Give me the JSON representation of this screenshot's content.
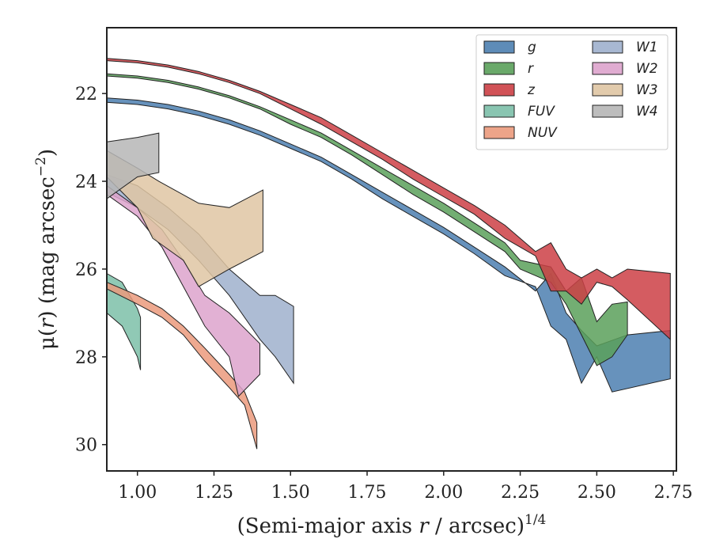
{
  "chart_data": {
    "type": "area",
    "xlabel": "(Semi-major axis r / arcsec)",
    "xlabel_main": "(Semi-major axis ",
    "xlabel_var": "r",
    "xlabel_tail": " / arcsec)",
    "xlabel_exp": "1/4",
    "ylabel_main": "μ(",
    "ylabel_var": "r",
    "ylabel_tail": ") (mag arcsec",
    "ylabel_exp": "−2",
    "ylabel_close": ")",
    "xlim": [
      0.9,
      2.76
    ],
    "ylim": [
      30.6,
      20.5
    ],
    "y_inverted": true,
    "x_ticks": [
      1.0,
      1.25,
      1.5,
      1.75,
      2.0,
      2.25,
      2.5,
      2.75
    ],
    "x_tick_labels": [
      "1.00",
      "1.25",
      "1.50",
      "1.75",
      "2.00",
      "2.25",
      "2.50",
      "2.75"
    ],
    "y_ticks": [
      22,
      24,
      26,
      28,
      30
    ],
    "y_tick_labels": [
      "22",
      "24",
      "26",
      "28",
      "30"
    ],
    "grid": false,
    "legend": {
      "placement": "top-right",
      "columns": 2
    },
    "series": [
      {
        "name": "g",
        "color": "#4c7fb0",
        "upper": [
          [
            0.9,
            22.1
          ],
          [
            1.0,
            22.15
          ],
          [
            1.1,
            22.25
          ],
          [
            1.2,
            22.4
          ],
          [
            1.3,
            22.6
          ],
          [
            1.4,
            22.85
          ],
          [
            1.5,
            23.15
          ],
          [
            1.6,
            23.45
          ],
          [
            1.7,
            23.85
          ],
          [
            1.8,
            24.25
          ],
          [
            1.9,
            24.65
          ],
          [
            2.0,
            25.05
          ],
          [
            2.1,
            25.5
          ],
          [
            2.2,
            25.95
          ],
          [
            2.3,
            26.5
          ],
          [
            2.35,
            26.1
          ],
          [
            2.4,
            27.0
          ],
          [
            2.45,
            27.4
          ],
          [
            2.5,
            27.75
          ],
          [
            2.6,
            27.5
          ],
          [
            2.74,
            27.4
          ]
        ],
        "lower": [
          [
            0.9,
            22.2
          ],
          [
            1.0,
            22.25
          ],
          [
            1.1,
            22.35
          ],
          [
            1.2,
            22.5
          ],
          [
            1.3,
            22.7
          ],
          [
            1.4,
            22.95
          ],
          [
            1.5,
            23.25
          ],
          [
            1.6,
            23.55
          ],
          [
            1.7,
            23.95
          ],
          [
            1.8,
            24.4
          ],
          [
            1.9,
            24.8
          ],
          [
            2.0,
            25.2
          ],
          [
            2.1,
            25.65
          ],
          [
            2.2,
            26.15
          ],
          [
            2.3,
            26.4
          ],
          [
            2.35,
            27.3
          ],
          [
            2.4,
            27.6
          ],
          [
            2.45,
            28.6
          ],
          [
            2.5,
            28.0
          ],
          [
            2.55,
            28.8
          ],
          [
            2.74,
            28.5
          ]
        ]
      },
      {
        "name": "r",
        "color": "#5aa05a",
        "upper": [
          [
            0.9,
            21.55
          ],
          [
            1.0,
            21.6
          ],
          [
            1.1,
            21.7
          ],
          [
            1.2,
            21.85
          ],
          [
            1.3,
            22.05
          ],
          [
            1.4,
            22.3
          ],
          [
            1.5,
            22.6
          ],
          [
            1.6,
            22.9
          ],
          [
            1.7,
            23.3
          ],
          [
            1.8,
            23.7
          ],
          [
            1.9,
            24.1
          ],
          [
            2.0,
            24.5
          ],
          [
            2.1,
            24.95
          ],
          [
            2.2,
            25.4
          ],
          [
            2.25,
            25.8
          ],
          [
            2.35,
            25.95
          ],
          [
            2.4,
            26.5
          ],
          [
            2.45,
            26.2
          ],
          [
            2.5,
            27.2
          ],
          [
            2.55,
            26.8
          ],
          [
            2.6,
            26.75
          ]
        ],
        "lower": [
          [
            0.9,
            21.6
          ],
          [
            1.0,
            21.65
          ],
          [
            1.1,
            21.75
          ],
          [
            1.2,
            21.9
          ],
          [
            1.3,
            22.1
          ],
          [
            1.4,
            22.35
          ],
          [
            1.5,
            22.7
          ],
          [
            1.6,
            23.0
          ],
          [
            1.7,
            23.4
          ],
          [
            1.8,
            23.85
          ],
          [
            1.9,
            24.3
          ],
          [
            2.0,
            24.7
          ],
          [
            2.1,
            25.15
          ],
          [
            2.2,
            25.6
          ],
          [
            2.25,
            26.0
          ],
          [
            2.35,
            26.3
          ],
          [
            2.4,
            26.8
          ],
          [
            2.45,
            27.5
          ],
          [
            2.5,
            28.2
          ],
          [
            2.55,
            28.0
          ],
          [
            2.6,
            27.5
          ]
        ]
      },
      {
        "name": "z",
        "color": "#cc3f45",
        "upper": [
          [
            0.9,
            21.2
          ],
          [
            1.0,
            21.25
          ],
          [
            1.1,
            21.35
          ],
          [
            1.2,
            21.5
          ],
          [
            1.3,
            21.7
          ],
          [
            1.4,
            21.95
          ],
          [
            1.5,
            22.25
          ],
          [
            1.6,
            22.55
          ],
          [
            1.7,
            22.95
          ],
          [
            1.8,
            23.35
          ],
          [
            1.9,
            23.75
          ],
          [
            2.0,
            24.15
          ],
          [
            2.1,
            24.55
          ],
          [
            2.2,
            25.0
          ],
          [
            2.3,
            25.6
          ],
          [
            2.35,
            25.4
          ],
          [
            2.4,
            26.0
          ],
          [
            2.45,
            26.2
          ],
          [
            2.5,
            26.0
          ],
          [
            2.55,
            26.2
          ],
          [
            2.6,
            26.0
          ],
          [
            2.74,
            26.1
          ]
        ],
        "lower": [
          [
            0.9,
            21.25
          ],
          [
            1.0,
            21.3
          ],
          [
            1.1,
            21.4
          ],
          [
            1.2,
            21.55
          ],
          [
            1.3,
            21.75
          ],
          [
            1.4,
            22.0
          ],
          [
            1.5,
            22.35
          ],
          [
            1.6,
            22.7
          ],
          [
            1.7,
            23.1
          ],
          [
            1.8,
            23.5
          ],
          [
            1.9,
            23.95
          ],
          [
            2.0,
            24.35
          ],
          [
            2.1,
            24.75
          ],
          [
            2.2,
            25.3
          ],
          [
            2.3,
            25.7
          ],
          [
            2.35,
            26.5
          ],
          [
            2.4,
            26.5
          ],
          [
            2.45,
            26.8
          ],
          [
            2.5,
            26.3
          ],
          [
            2.55,
            26.4
          ],
          [
            2.6,
            26.7
          ],
          [
            2.74,
            27.6
          ]
        ]
      },
      {
        "name": "FUV",
        "color": "#7cbfa8",
        "upper": [
          [
            0.9,
            26.1
          ],
          [
            0.95,
            26.3
          ],
          [
            1.0,
            26.9
          ],
          [
            1.01,
            27.1
          ]
        ],
        "lower": [
          [
            0.9,
            27.0
          ],
          [
            0.95,
            27.3
          ],
          [
            1.0,
            28.0
          ],
          [
            1.01,
            28.3
          ]
        ]
      },
      {
        "name": "NUV",
        "color": "#eb9a7c",
        "upper": [
          [
            0.9,
            26.3
          ],
          [
            1.0,
            26.6
          ],
          [
            1.08,
            26.9
          ],
          [
            1.15,
            27.3
          ],
          [
            1.22,
            27.8
          ],
          [
            1.3,
            28.4
          ],
          [
            1.35,
            28.8
          ],
          [
            1.39,
            29.5
          ]
        ],
        "lower": [
          [
            0.9,
            26.45
          ],
          [
            1.0,
            26.8
          ],
          [
            1.08,
            27.1
          ],
          [
            1.15,
            27.5
          ],
          [
            1.22,
            28.1
          ],
          [
            1.3,
            28.7
          ],
          [
            1.35,
            29.1
          ],
          [
            1.39,
            30.1
          ]
        ]
      },
      {
        "name": "W1",
        "color": "#9fb0cd",
        "upper": [
          [
            0.9,
            23.85
          ],
          [
            1.0,
            24.1
          ],
          [
            1.1,
            24.6
          ],
          [
            1.2,
            25.2
          ],
          [
            1.3,
            26.0
          ],
          [
            1.4,
            26.6
          ],
          [
            1.45,
            26.6
          ],
          [
            1.51,
            26.85
          ]
        ],
        "lower": [
          [
            0.9,
            24.25
          ],
          [
            1.0,
            24.6
          ],
          [
            1.1,
            25.1
          ],
          [
            1.2,
            25.8
          ],
          [
            1.3,
            26.6
          ],
          [
            1.4,
            27.6
          ],
          [
            1.45,
            28.0
          ],
          [
            1.51,
            28.6
          ]
        ]
      },
      {
        "name": "W2",
        "color": "#dda3cc",
        "upper": [
          [
            0.9,
            24.1
          ],
          [
            1.0,
            24.6
          ],
          [
            1.08,
            25.1
          ],
          [
            1.15,
            25.8
          ],
          [
            1.22,
            26.6
          ],
          [
            1.3,
            27.0
          ],
          [
            1.4,
            27.7
          ]
        ],
        "lower": [
          [
            0.9,
            24.3
          ],
          [
            1.0,
            24.8
          ],
          [
            1.08,
            25.5
          ],
          [
            1.15,
            26.4
          ],
          [
            1.22,
            27.3
          ],
          [
            1.3,
            28.0
          ],
          [
            1.33,
            28.9
          ],
          [
            1.4,
            28.4
          ]
        ]
      },
      {
        "name": "W3",
        "color": "#dfc5a3",
        "upper": [
          [
            0.9,
            23.3
          ],
          [
            1.0,
            23.7
          ],
          [
            1.07,
            24.0
          ],
          [
            1.2,
            24.5
          ],
          [
            1.3,
            24.6
          ],
          [
            1.41,
            24.2
          ]
        ],
        "lower": [
          [
            0.9,
            23.9
          ],
          [
            1.0,
            24.6
          ],
          [
            1.05,
            25.3
          ],
          [
            1.15,
            25.8
          ],
          [
            1.2,
            26.4
          ],
          [
            1.3,
            26.0
          ],
          [
            1.41,
            25.6
          ]
        ]
      },
      {
        "name": "W4",
        "color": "#b6b6b6",
        "upper": [
          [
            0.9,
            23.1
          ],
          [
            1.0,
            23.0
          ],
          [
            1.07,
            22.9
          ]
        ],
        "lower": [
          [
            0.9,
            24.4
          ],
          [
            1.0,
            23.9
          ],
          [
            1.07,
            23.8
          ]
        ]
      }
    ]
  }
}
